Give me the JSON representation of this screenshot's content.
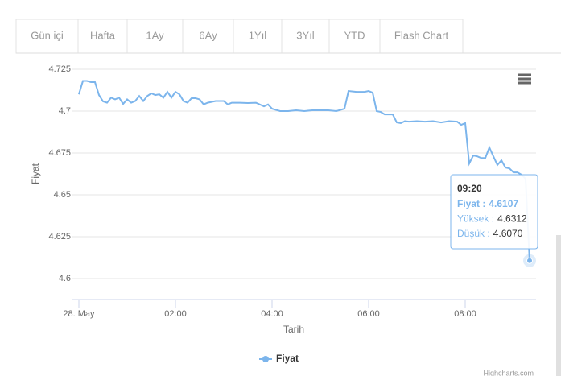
{
  "tabs": [
    "Gün içi",
    "Hafta",
    "1Ay",
    "6Ay",
    "1Yıl",
    "3Yıl",
    "YTD",
    "Flash Chart"
  ],
  "chart_data": {
    "type": "line",
    "x_label": "Tarih",
    "y_label": "Fiyat",
    "x": [
      "00:00",
      "00:05",
      "00:10",
      "00:15",
      "00:20",
      "00:25",
      "00:30",
      "00:35",
      "00:40",
      "00:45",
      "00:50",
      "00:55",
      "01:00",
      "01:05",
      "01:10",
      "01:15",
      "01:20",
      "01:25",
      "01:30",
      "01:35",
      "01:40",
      "01:45",
      "01:50",
      "01:55",
      "02:00",
      "02:05",
      "02:10",
      "02:15",
      "02:20",
      "02:25",
      "02:30",
      "02:35",
      "02:40",
      "02:50",
      "03:00",
      "03:05",
      "03:10",
      "03:20",
      "03:30",
      "03:40",
      "03:50",
      "03:55",
      "04:00",
      "04:10",
      "04:20",
      "04:30",
      "04:40",
      "04:50",
      "05:00",
      "05:10",
      "05:20",
      "05:30",
      "05:35",
      "05:45",
      "05:55",
      "06:00",
      "06:05",
      "06:10",
      "06:15",
      "06:20",
      "06:30",
      "06:35",
      "06:40",
      "06:45",
      "06:50",
      "07:00",
      "07:10",
      "07:20",
      "07:30",
      "07:40",
      "07:50",
      "07:55",
      "08:00",
      "08:05",
      "08:10",
      "08:15",
      "08:20",
      "08:25",
      "08:30",
      "08:35",
      "08:40",
      "08:45",
      "08:50",
      "08:55",
      "09:00",
      "09:05",
      "09:10",
      "09:15",
      "09:20"
    ],
    "series": [
      {
        "name": "Fiyat",
        "color": "#7cb5ec",
        "values": [
          4.71,
          4.718,
          4.718,
          4.7173,
          4.7173,
          4.7096,
          4.7058,
          4.705,
          4.708,
          4.707,
          4.708,
          4.7043,
          4.707,
          4.705,
          4.706,
          4.709,
          4.706,
          4.709,
          4.7106,
          4.7096,
          4.71,
          4.708,
          4.7115,
          4.708,
          4.7115,
          4.71,
          4.706,
          4.705,
          4.7077,
          4.7077,
          4.707,
          4.704,
          4.705,
          4.706,
          4.706,
          4.704,
          4.705,
          4.705,
          4.7048,
          4.705,
          4.7028,
          4.704,
          4.7014,
          4.7,
          4.7,
          4.7005,
          4.7,
          4.7005,
          4.7005,
          4.7005,
          4.7,
          4.7014,
          4.712,
          4.7115,
          4.7115,
          4.712,
          4.711,
          4.7,
          4.6995,
          4.698,
          4.698,
          4.6932,
          4.6928,
          4.694,
          4.6937,
          4.694,
          4.6937,
          4.694,
          4.6932,
          4.694,
          4.6937,
          4.6918,
          4.6928,
          4.6687,
          4.6735,
          4.673,
          4.672,
          4.672,
          4.6783,
          4.673,
          4.6678,
          4.6706,
          4.6663,
          4.6658,
          4.6634,
          4.6634,
          4.662,
          4.6596,
          4.6107
        ]
      }
    ],
    "xlim": [
      "00:00",
      "09:20"
    ],
    "xticks": [
      {
        "value": "00:00",
        "label": "28. May"
      },
      "02:00",
      "04:00",
      "06:00",
      "08:00"
    ],
    "ylim": [
      4.5875,
      4.7325
    ],
    "yticks": [
      4.6,
      4.625,
      4.65,
      4.675,
      4.7,
      4.725
    ],
    "grid": true,
    "tooltip": {
      "title": "09:20",
      "labels": [
        "Fiyat :",
        "Yüksek :",
        "Düşük :"
      ],
      "values": [
        "4.6107",
        "4.6312",
        "4.6070"
      ]
    },
    "credit": "Highcharts.com"
  }
}
